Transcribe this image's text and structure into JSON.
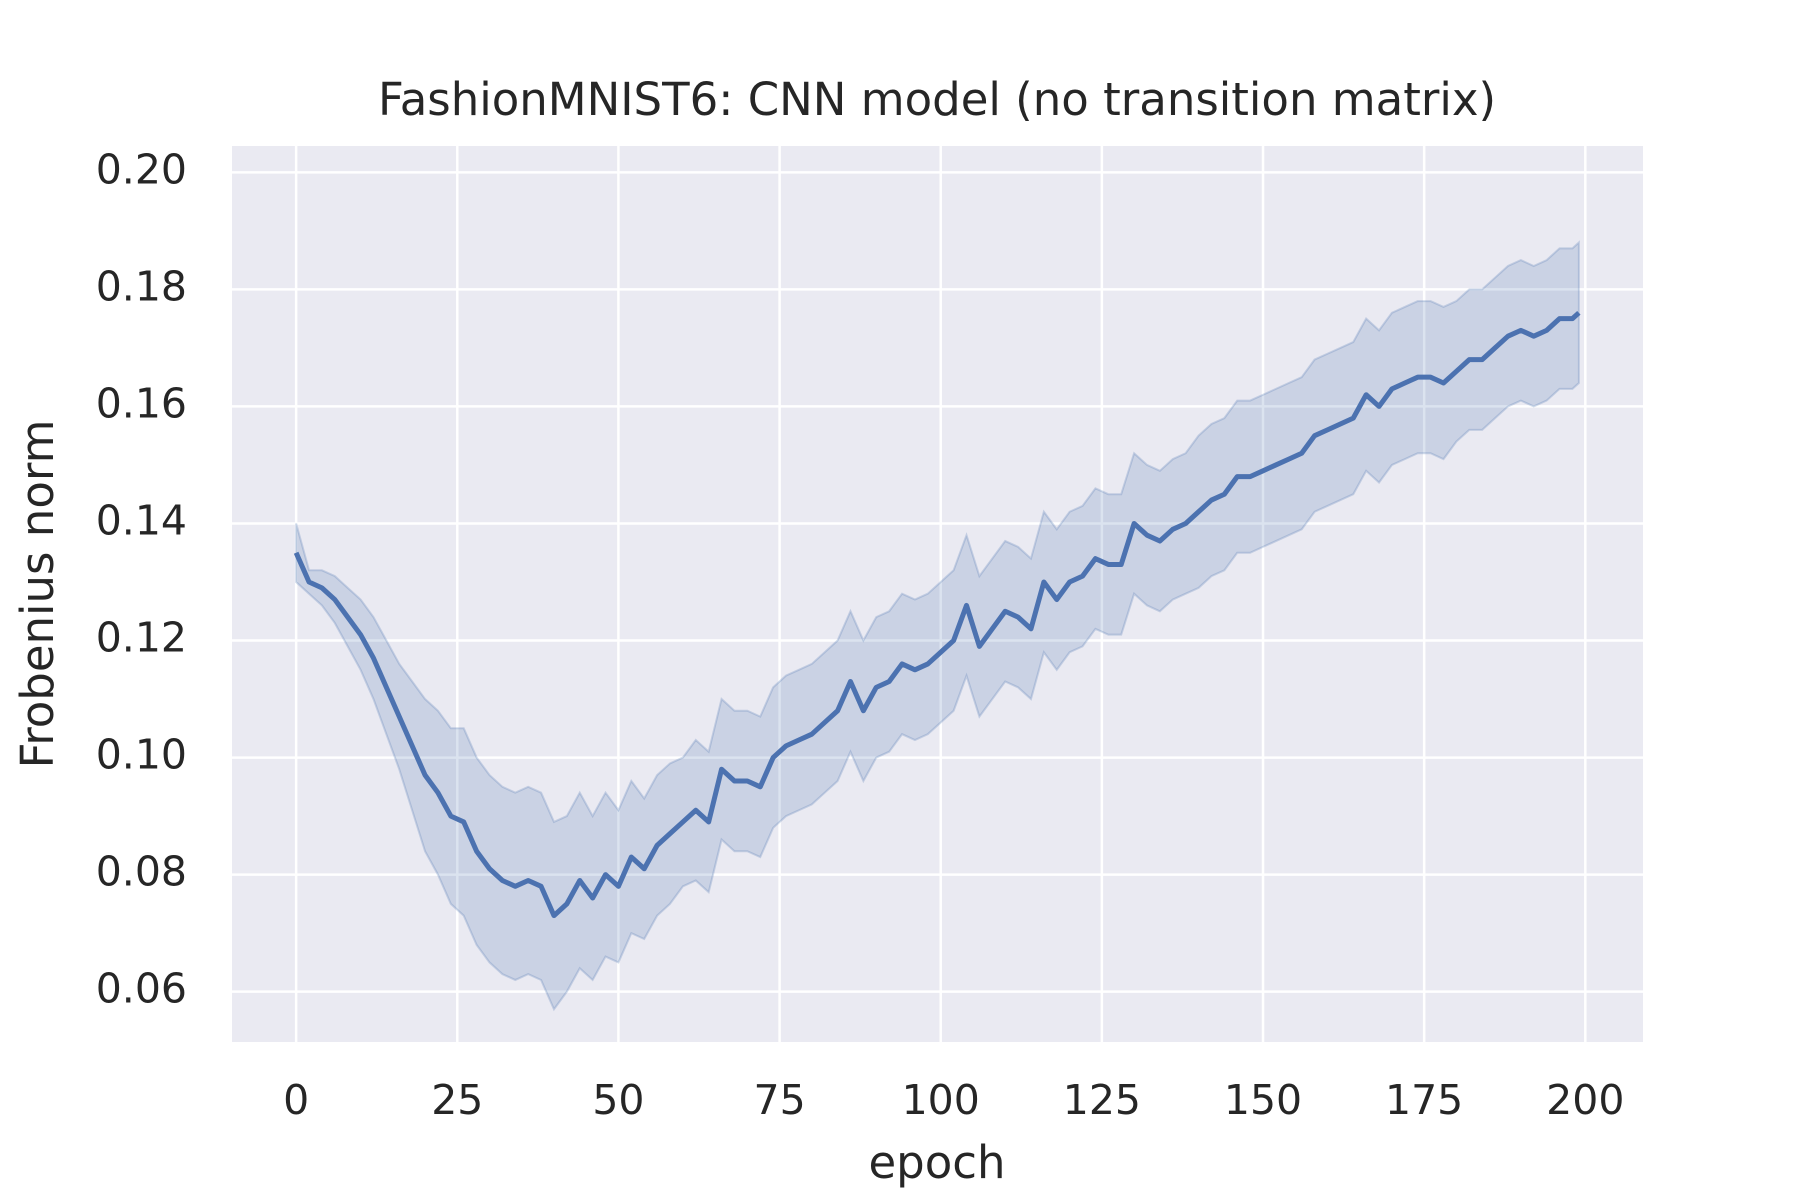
{
  "chart_data": {
    "type": "line_band",
    "title": "FashionMNIST6: CNN model (no transition matrix)",
    "x_label": "epoch",
    "y_label": "Frobenius norm",
    "xlim": [
      -9.95,
      208.95
    ],
    "xticks": [
      0,
      25,
      50,
      75,
      100,
      125,
      150,
      175,
      200
    ],
    "ylim": [
      0.0514,
      0.2045
    ],
    "yticks": [
      0.06,
      0.08,
      {
        "value": 0.1,
        "label": "0.10"
      },
      0.12,
      0.14,
      0.16,
      0.18,
      {
        "value": 0.2,
        "label": "0.20"
      }
    ],
    "grid": true,
    "x": [
      0,
      2,
      4,
      6,
      8,
      10,
      12,
      14,
      16,
      18,
      20,
      22,
      24,
      26,
      28,
      30,
      32,
      34,
      36,
      38,
      40,
      42,
      44,
      46,
      48,
      50,
      52,
      54,
      56,
      58,
      60,
      62,
      64,
      66,
      68,
      70,
      72,
      74,
      76,
      78,
      80,
      82,
      84,
      86,
      88,
      90,
      92,
      94,
      96,
      98,
      100,
      102,
      104,
      106,
      108,
      110,
      112,
      114,
      116,
      118,
      120,
      122,
      124,
      126,
      128,
      130,
      132,
      134,
      136,
      138,
      140,
      142,
      144,
      146,
      148,
      150,
      152,
      154,
      156,
      158,
      160,
      162,
      164,
      166,
      168,
      170,
      172,
      174,
      176,
      178,
      180,
      182,
      184,
      186,
      188,
      190,
      192,
      194,
      196,
      198,
      199
    ],
    "series": [
      {
        "color": "#4c72b0",
        "values": [
          0.135,
          0.13,
          0.129,
          0.127,
          0.124,
          0.121,
          0.117,
          0.112,
          0.107,
          0.102,
          0.097,
          0.094,
          0.09,
          0.089,
          0.084,
          0.081,
          0.079,
          0.078,
          0.079,
          0.078,
          0.073,
          0.075,
          0.079,
          0.076,
          0.08,
          0.078,
          0.083,
          0.081,
          0.085,
          0.087,
          0.089,
          0.091,
          0.089,
          0.098,
          0.096,
          0.096,
          0.095,
          0.1,
          0.102,
          0.103,
          0.104,
          0.106,
          0.108,
          0.113,
          0.108,
          0.112,
          0.113,
          0.116,
          0.115,
          0.116,
          0.118,
          0.12,
          0.126,
          0.119,
          0.122,
          0.125,
          0.124,
          0.122,
          0.13,
          0.127,
          0.13,
          0.131,
          0.134,
          0.133,
          0.133,
          0.14,
          0.138,
          0.137,
          0.139,
          0.14,
          0.142,
          0.144,
          0.145,
          0.148,
          0.148,
          0.149,
          0.15,
          0.151,
          0.152,
          0.155,
          0.156,
          0.157,
          0.158,
          0.162,
          0.16,
          0.163,
          0.164,
          0.165,
          0.165,
          0.164,
          0.166,
          0.168,
          0.168,
          0.17,
          0.172,
          0.173,
          0.172,
          0.173,
          0.175,
          0.175,
          0.176
        ],
        "upper": [
          0.14,
          0.132,
          0.132,
          0.131,
          0.129,
          0.127,
          0.124,
          0.12,
          0.116,
          0.113,
          0.11,
          0.108,
          0.105,
          0.105,
          0.1,
          0.097,
          0.095,
          0.094,
          0.095,
          0.094,
          0.089,
          0.09,
          0.094,
          0.09,
          0.094,
          0.091,
          0.096,
          0.093,
          0.097,
          0.099,
          0.1,
          0.103,
          0.101,
          0.11,
          0.108,
          0.108,
          0.107,
          0.112,
          0.114,
          0.115,
          0.116,
          0.118,
          0.12,
          0.125,
          0.12,
          0.124,
          0.125,
          0.128,
          0.127,
          0.128,
          0.13,
          0.132,
          0.138,
          0.131,
          0.134,
          0.137,
          0.136,
          0.134,
          0.142,
          0.139,
          0.142,
          0.143,
          0.146,
          0.145,
          0.145,
          0.152,
          0.15,
          0.149,
          0.151,
          0.152,
          0.155,
          0.157,
          0.158,
          0.161,
          0.161,
          0.162,
          0.163,
          0.164,
          0.165,
          0.168,
          0.169,
          0.17,
          0.171,
          0.175,
          0.173,
          0.176,
          0.177,
          0.178,
          0.178,
          0.177,
          0.178,
          0.18,
          0.18,
          0.182,
          0.184,
          0.185,
          0.184,
          0.185,
          0.187,
          0.187,
          0.188
        ],
        "lower": [
          0.13,
          0.128,
          0.126,
          0.123,
          0.119,
          0.115,
          0.11,
          0.104,
          0.098,
          0.091,
          0.084,
          0.08,
          0.075,
          0.073,
          0.068,
          0.065,
          0.063,
          0.062,
          0.063,
          0.062,
          0.057,
          0.06,
          0.064,
          0.062,
          0.066,
          0.065,
          0.07,
          0.069,
          0.073,
          0.075,
          0.078,
          0.079,
          0.077,
          0.086,
          0.084,
          0.084,
          0.083,
          0.088,
          0.09,
          0.091,
          0.092,
          0.094,
          0.096,
          0.101,
          0.096,
          0.1,
          0.101,
          0.104,
          0.103,
          0.104,
          0.106,
          0.108,
          0.114,
          0.107,
          0.11,
          0.113,
          0.112,
          0.11,
          0.118,
          0.115,
          0.118,
          0.119,
          0.122,
          0.121,
          0.121,
          0.128,
          0.126,
          0.125,
          0.127,
          0.128,
          0.129,
          0.131,
          0.132,
          0.135,
          0.135,
          0.136,
          0.137,
          0.138,
          0.139,
          0.142,
          0.143,
          0.144,
          0.145,
          0.149,
          0.147,
          0.15,
          0.151,
          0.152,
          0.152,
          0.151,
          0.154,
          0.156,
          0.156,
          0.158,
          0.16,
          0.161,
          0.16,
          0.161,
          0.163,
          0.163,
          0.164
        ]
      }
    ]
  }
}
